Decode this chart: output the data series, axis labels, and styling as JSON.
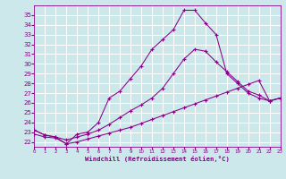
{
  "xlabel": "Windchill (Refroidissement éolien,°C)",
  "bg_color": "#cce8ea",
  "line_color": "#880088",
  "grid_color": "#aacccc",
  "ylim": [
    21.5,
    36.0
  ],
  "xlim": [
    0,
    23
  ],
  "yticks": [
    22,
    23,
    24,
    25,
    26,
    27,
    28,
    29,
    30,
    31,
    32,
    33,
    34,
    35
  ],
  "xticks": [
    0,
    1,
    2,
    3,
    4,
    5,
    6,
    7,
    8,
    9,
    10,
    11,
    12,
    13,
    14,
    15,
    16,
    17,
    18,
    19,
    20,
    21,
    22,
    23
  ],
  "curve_top_x": [
    0,
    1,
    2,
    3,
    4,
    5,
    6,
    7,
    8,
    9,
    10,
    11,
    12,
    13,
    14,
    15,
    16,
    17,
    18,
    19,
    20,
    21,
    22,
    23
  ],
  "curve_top_y": [
    23.2,
    22.7,
    22.5,
    21.8,
    22.8,
    23.0,
    24.0,
    26.5,
    27.2,
    28.5,
    29.8,
    31.5,
    32.5,
    33.5,
    35.5,
    35.5,
    34.2,
    33.0,
    29.0,
    28.0,
    27.0,
    26.5,
    26.2,
    26.5
  ],
  "curve_mid_x": [
    0,
    1,
    2,
    3,
    4,
    5,
    6,
    7,
    8,
    9,
    10,
    11,
    12,
    13,
    14,
    15,
    16,
    17,
    18,
    19,
    20,
    21,
    22,
    23
  ],
  "curve_mid_y": [
    23.2,
    22.7,
    22.5,
    22.2,
    22.5,
    22.8,
    23.2,
    23.8,
    24.5,
    25.2,
    25.8,
    26.5,
    27.5,
    29.0,
    30.5,
    31.5,
    31.3,
    30.2,
    29.2,
    28.2,
    27.2,
    26.8,
    26.2,
    26.5
  ],
  "curve_bot_x": [
    0,
    1,
    2,
    3,
    4,
    5,
    6,
    7,
    8,
    9,
    10,
    11,
    12,
    13,
    14,
    15,
    16,
    17,
    18,
    19,
    20,
    21,
    22,
    23
  ],
  "curve_bot_y": [
    22.8,
    22.5,
    22.4,
    21.8,
    22.0,
    22.3,
    22.6,
    22.9,
    23.2,
    23.5,
    23.9,
    24.3,
    24.7,
    25.1,
    25.5,
    25.9,
    26.3,
    26.7,
    27.1,
    27.5,
    27.9,
    28.3,
    26.2,
    26.5
  ]
}
